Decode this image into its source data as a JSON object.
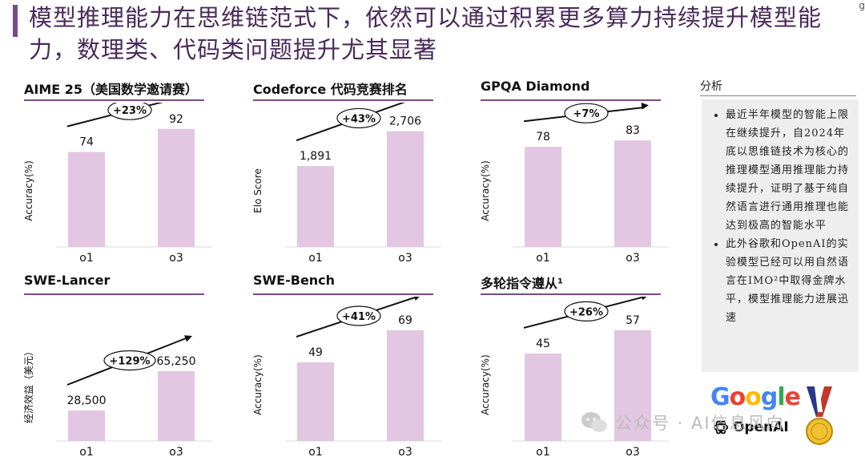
{
  "header": {
    "title": "模型推理能力在思维链范式下，依然可以通过积累更多算力持续提升模型能力，数理类、代码类问题提升尤其显著",
    "corner_mark": "g"
  },
  "analysis": {
    "title": "分析",
    "bullets": [
      "最近半年模型的智能上限在继续提升，自2024年底以思维链技术为核心的推理模型通用推理能力持续提升，证明了基于纯自然语言进行通用推理也能达到极高的智能水平",
      "此外谷歌和OpenAI的实验模型已经可以用自然语言在IMO²中取得金牌水平，模型推理能力进展迅速"
    ]
  },
  "logos": {
    "google": "Google",
    "openai": "OpenAI",
    "openai_icon": "openai-knot-icon",
    "medal_icon": "gold-medal-icon"
  },
  "watermark": {
    "text": "公众号 · AI信息风向",
    "icon": "wechat-icon"
  },
  "colors": {
    "bar": "#e2c6e2",
    "accent": "#7a4a8a",
    "google_blue": "#4285F4",
    "google_red": "#EA4335",
    "google_yellow": "#FBBC05",
    "google_green": "#34A853"
  },
  "chart_data": [
    {
      "type": "bar",
      "title": "AIME 25（美国数学邀请赛）",
      "ylabel": "Accuracy(%)",
      "categories": [
        "o1",
        "o3"
      ],
      "values": [
        74,
        92
      ],
      "value_labels": [
        "74",
        "92"
      ],
      "annotation": "+23%",
      "ylim": [
        0,
        100
      ]
    },
    {
      "type": "bar",
      "title": "Codeforce 代码竞赛排名",
      "ylabel": "Elo Score",
      "categories": [
        "o1",
        "o3"
      ],
      "values": [
        1891,
        2706
      ],
      "value_labels": [
        "1,891",
        "2,706"
      ],
      "annotation": "+43%",
      "ylim": [
        0,
        3000
      ]
    },
    {
      "type": "bar",
      "title": "GPQA Diamond",
      "ylabel": "Accuracy(%)",
      "categories": [
        "o1",
        "o3"
      ],
      "values": [
        78,
        83
      ],
      "value_labels": [
        "78",
        "83"
      ],
      "annotation": "+7%",
      "ylim": [
        0,
        100
      ]
    },
    {
      "type": "bar",
      "title": "SWE-Lancer",
      "ylabel": "经济效益（美元）",
      "categories": [
        "o1",
        "o3"
      ],
      "values": [
        28500,
        65250
      ],
      "value_labels": [
        "28,500",
        "65,250"
      ],
      "annotation": "+129%",
      "ylim": [
        0,
        120000
      ]
    },
    {
      "type": "bar",
      "title": "SWE-Bench",
      "ylabel": "Accuracy(%)",
      "categories": [
        "o1",
        "o3"
      ],
      "values": [
        49,
        69
      ],
      "value_labels": [
        "49",
        "69"
      ],
      "annotation": "+41%",
      "ylim": [
        0,
        80
      ]
    },
    {
      "type": "bar",
      "title": "多轮指令遵从¹",
      "ylabel": "Accuracy(%)",
      "categories": [
        "o1",
        "o3"
      ],
      "values": [
        45,
        57
      ],
      "value_labels": [
        "45",
        "57"
      ],
      "annotation": "+26%",
      "ylim": [
        0,
        66
      ]
    }
  ]
}
